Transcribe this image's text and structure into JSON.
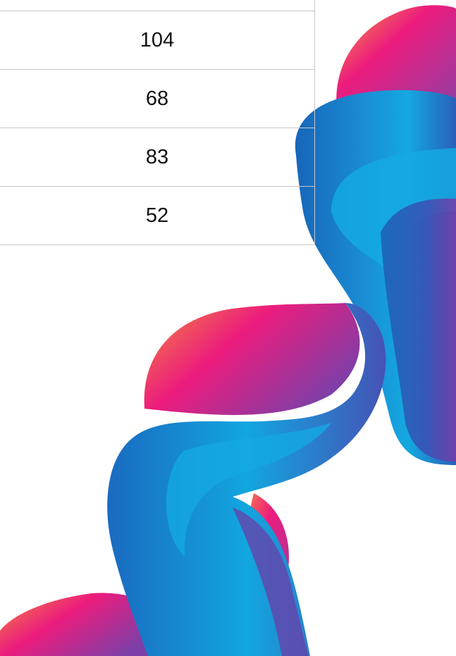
{
  "table": {
    "rows": [
      {
        "value": "104"
      },
      {
        "value": "68"
      },
      {
        "value": "83"
      },
      {
        "value": "52"
      }
    ]
  },
  "decoration": {
    "name": "abstract-fluid-ribbon",
    "colors": {
      "pink": "#ec1c7d",
      "orange": "#f7a13a",
      "purple": "#8e3fa5",
      "blue": "#1b6fc1",
      "cyan": "#14a9e0"
    }
  }
}
